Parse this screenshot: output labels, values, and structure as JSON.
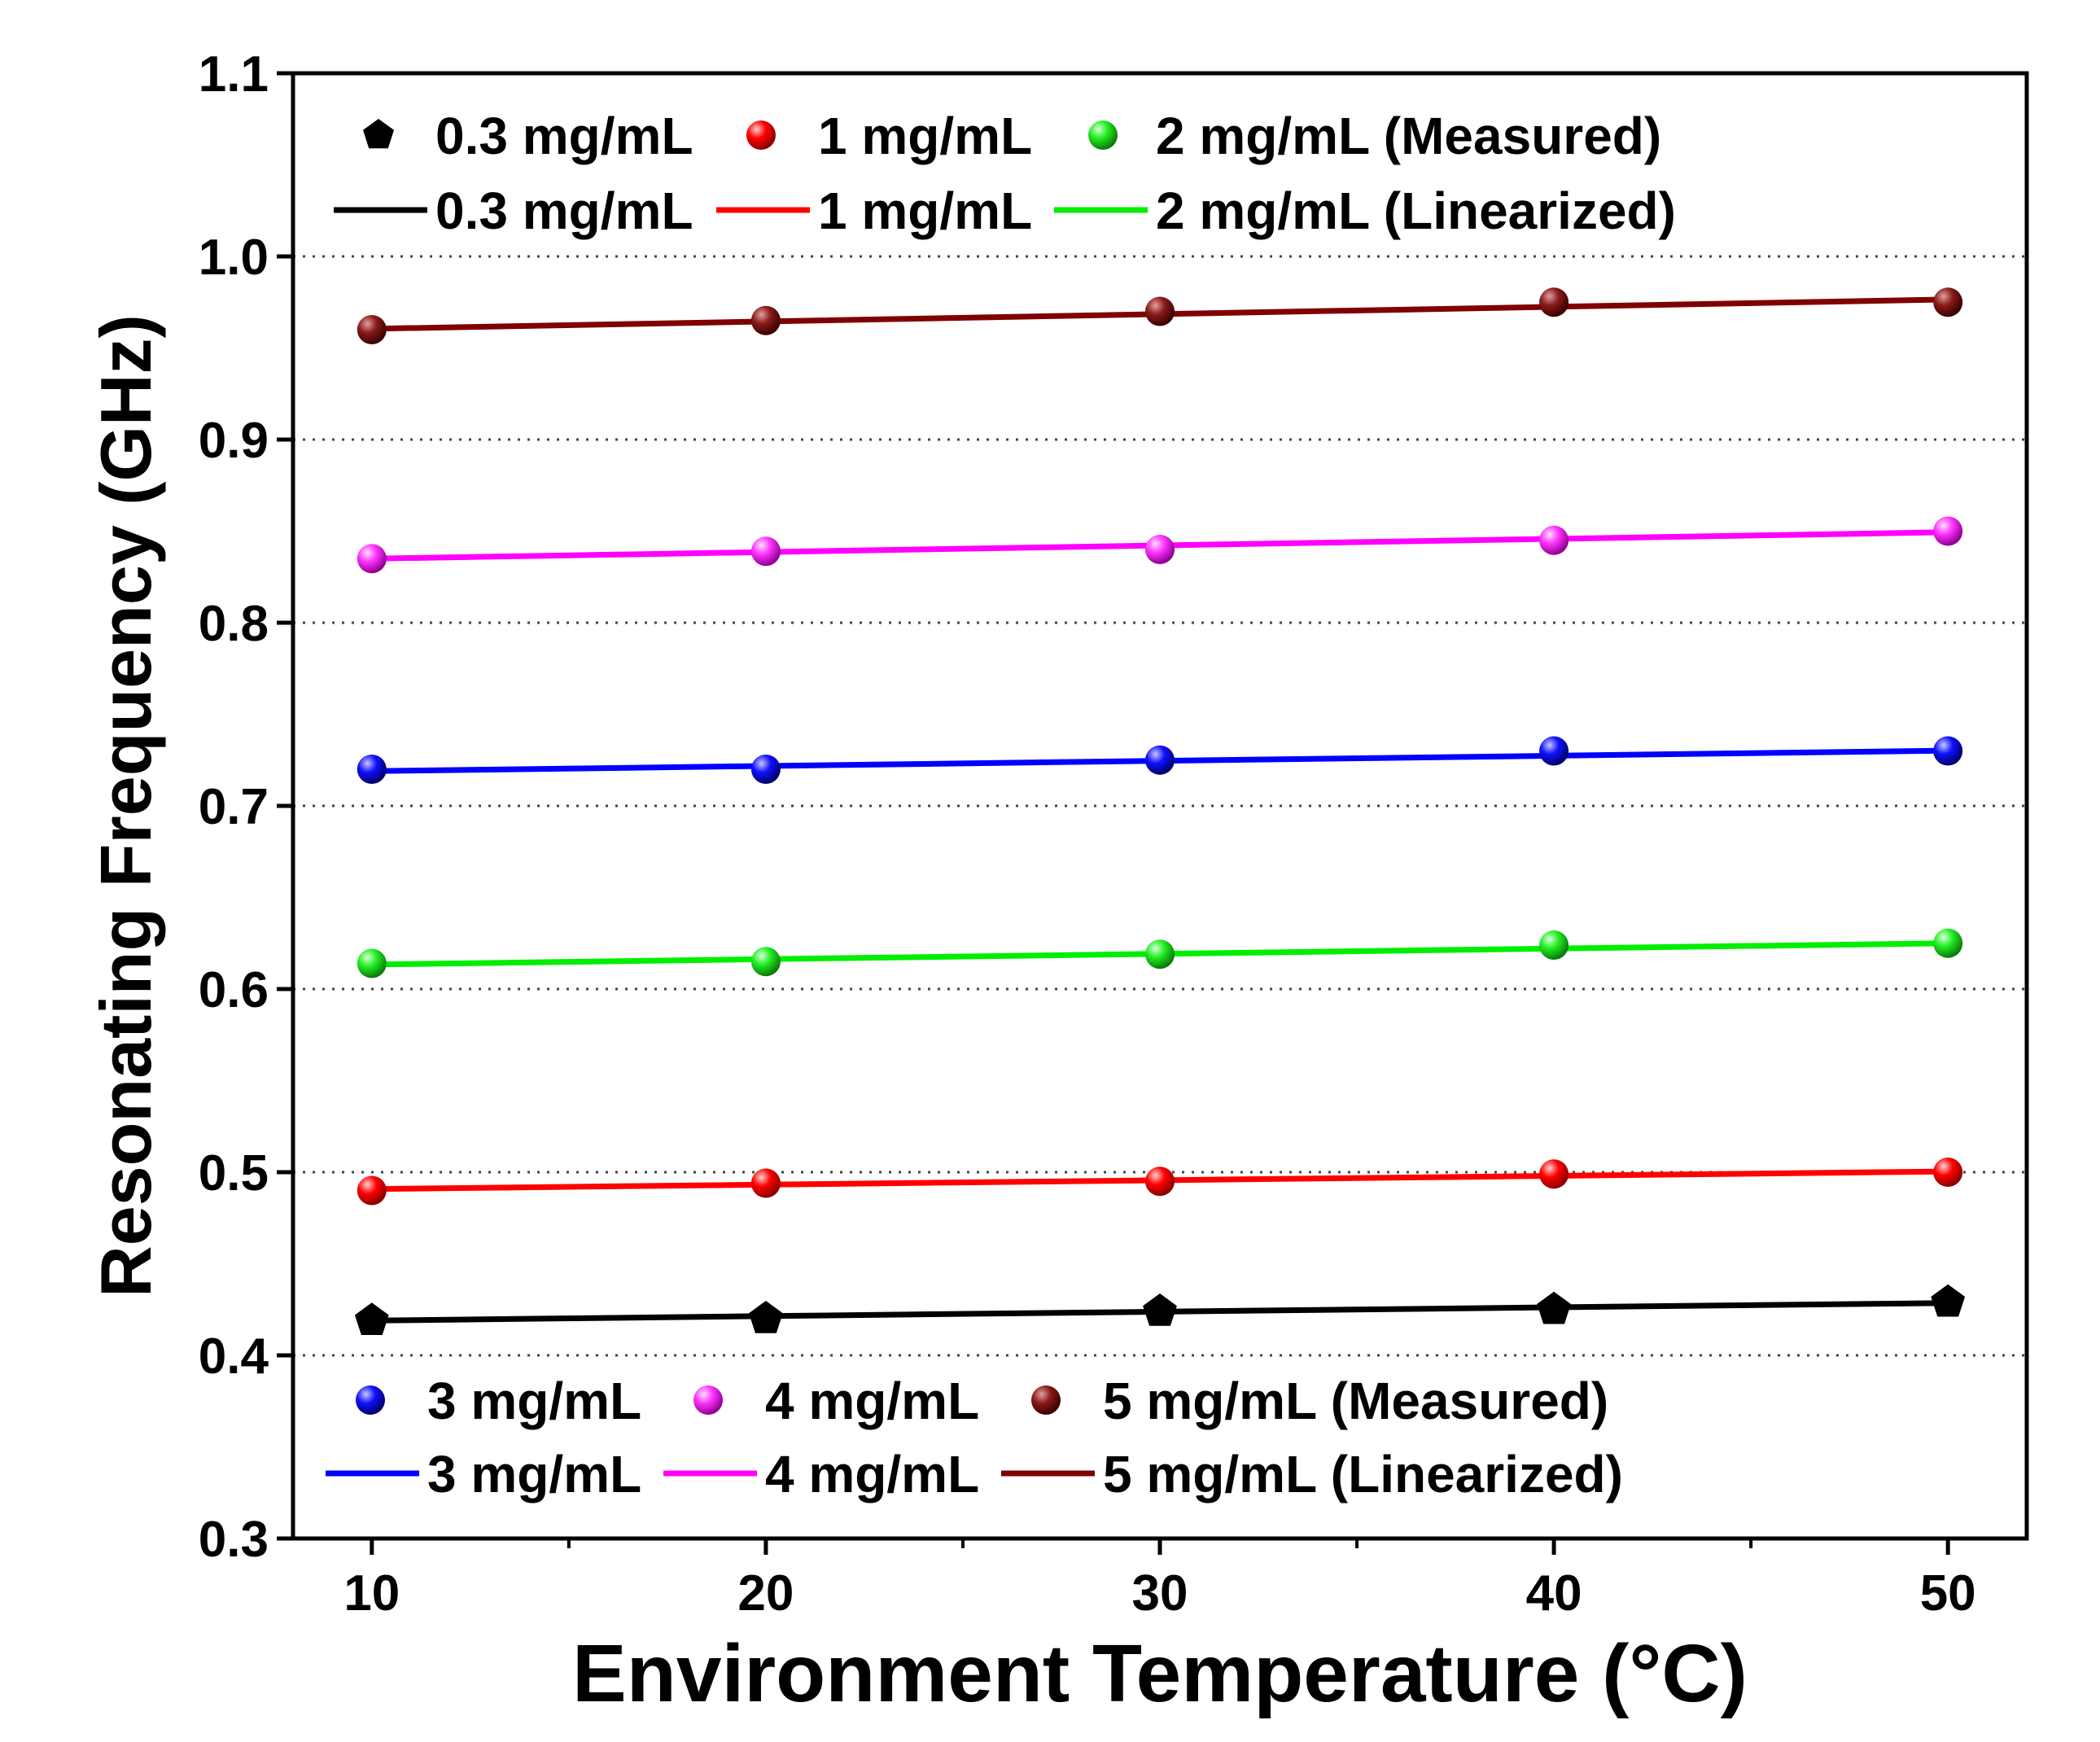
{
  "chart_data": {
    "type": "line",
    "xlabel": "Environment Temperature (°C)",
    "ylabel": "Resonating Frequency (GHz)",
    "xlim": [
      8,
      52
    ],
    "ylim": [
      0.3,
      1.1
    ],
    "xticks": [
      10,
      20,
      30,
      40,
      50
    ],
    "yticks": [
      0.3,
      0.4,
      0.5,
      0.6,
      0.7,
      0.8,
      0.9,
      1.0,
      1.1
    ],
    "xtick_labels": [
      "10",
      "20",
      "30",
      "40",
      "50"
    ],
    "ytick_labels": [
      "0.3",
      "0.4",
      "0.5",
      "0.6",
      "0.7",
      "0.8",
      "0.9",
      "1.0",
      "1.1"
    ],
    "grid": "horizontal dotted",
    "x": [
      10,
      20,
      30,
      40,
      50
    ],
    "series": [
      {
        "name": "0.3 mg/mL",
        "color": "#000000",
        "marker": "pentagon",
        "measured": [
          0.419,
          0.42,
          0.424,
          0.425,
          0.429
        ],
        "linearized": [
          0.419,
          0.4214,
          0.4238,
          0.4262,
          0.4286
        ]
      },
      {
        "name": "1 mg/mL",
        "color": "#ff0000",
        "marker": "sphere",
        "measured": [
          0.49,
          0.494,
          0.495,
          0.499,
          0.5
        ],
        "linearized": [
          0.4908,
          0.4932,
          0.4956,
          0.498,
          0.5004
        ]
      },
      {
        "name": "2 mg/mL",
        "color": "#00ee00",
        "marker": "sphere",
        "measured": [
          0.614,
          0.615,
          0.619,
          0.624,
          0.625
        ],
        "linearized": [
          0.6134,
          0.6163,
          0.6192,
          0.6221,
          0.625
        ]
      },
      {
        "name": "3 mg/mL",
        "color": "#0000ff",
        "marker": "sphere",
        "measured": [
          0.72,
          0.72,
          0.725,
          0.73,
          0.73
        ],
        "linearized": [
          0.719,
          0.7218,
          0.7246,
          0.7274,
          0.7302
        ]
      },
      {
        "name": "4 mg/mL",
        "color": "#ff00ff",
        "marker": "sphere",
        "measured": [
          0.835,
          0.839,
          0.84,
          0.845,
          0.85
        ],
        "linearized": [
          0.835,
          0.8386,
          0.8422,
          0.8458,
          0.8494
        ]
      },
      {
        "name": "5 mg/mL",
        "color": "#800000",
        "marker": "sphere",
        "measured": [
          0.96,
          0.965,
          0.97,
          0.975,
          0.975
        ],
        "linearized": [
          0.9605,
          0.9645,
          0.9685,
          0.9725,
          0.9765
        ]
      }
    ],
    "legend_top": {
      "placement": "top-left",
      "measured_row": [
        "0.3 mg/mL",
        "1 mg/mL",
        "2 mg/mL (Measured)"
      ],
      "linearized_row": [
        "0.3 mg/mL",
        "1 mg/mL",
        "2 mg/mL (Linearized)"
      ]
    },
    "legend_bottom": {
      "placement": "bottom-left",
      "measured_row": [
        "3 mg/mL",
        "4 mg/mL",
        "5 mg/mL (Measured)"
      ],
      "linearized_row": [
        "3 mg/mL",
        "4 mg/mL",
        "5 mg/mL (Linearized)"
      ]
    }
  }
}
